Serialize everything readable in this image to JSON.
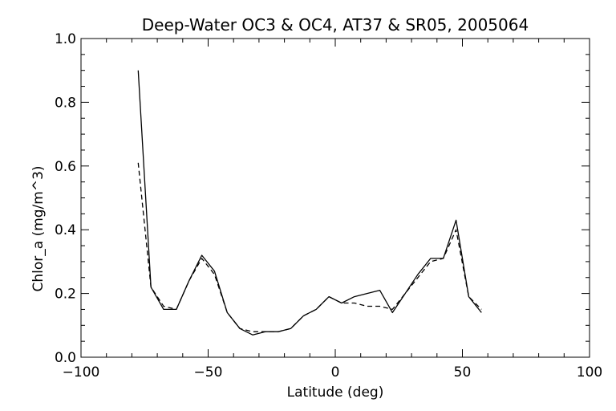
{
  "chart_data": {
    "type": "line",
    "title": "Deep-Water OC3 & OC4, AT37 & SR05, 2005064",
    "xlabel": "Latitude (deg)",
    "ylabel": "Chlor_a (mg/m^3)",
    "xlim": [
      -100,
      100
    ],
    "ylim": [
      0.0,
      1.0
    ],
    "x_ticks": [
      -100,
      -50,
      0,
      50,
      100
    ],
    "x_tick_labels": [
      "−100",
      "−50",
      "0",
      "50",
      "100"
    ],
    "y_ticks": [
      0.0,
      0.2,
      0.4,
      0.6,
      0.8,
      1.0
    ],
    "y_tick_labels": [
      "0.0",
      "0.2",
      "0.4",
      "0.6",
      "0.8",
      "1.0"
    ],
    "grid": false,
    "series": [
      {
        "style": "solid",
        "x": [
          -77.5,
          -72.5,
          -67.5,
          -62.5,
          -57.5,
          -52.5,
          -47.5,
          -42.5,
          -37.5,
          -32.5,
          -27.5,
          -22.5,
          -17.5,
          -12.5,
          -7.5,
          -2.5,
          2.5,
          7.5,
          12.5,
          17.5,
          22.5,
          27.5,
          32.5,
          37.5,
          42.5,
          47.5,
          52.5,
          57.5
        ],
        "values": [
          0.9,
          0.22,
          0.15,
          0.15,
          0.24,
          0.32,
          0.27,
          0.14,
          0.09,
          0.07,
          0.08,
          0.08,
          0.09,
          0.13,
          0.15,
          0.19,
          0.17,
          0.19,
          0.2,
          0.21,
          0.14,
          0.2,
          0.26,
          0.31,
          0.31,
          0.43,
          0.19,
          0.14
        ]
      },
      {
        "style": "dashed",
        "x": [
          -77.5,
          -72.5,
          -67.5,
          -62.5,
          -57.5,
          -52.5,
          -47.5,
          -42.5,
          -37.5,
          -32.5,
          -27.5,
          -22.5,
          -17.5,
          -12.5,
          -7.5,
          -2.5,
          2.5,
          7.5,
          12.5,
          17.5,
          22.5,
          27.5,
          32.5,
          37.5,
          42.5,
          47.5,
          52.5,
          57.5
        ],
        "values": [
          0.61,
          0.22,
          0.16,
          0.15,
          0.24,
          0.31,
          0.26,
          0.14,
          0.09,
          0.08,
          0.08,
          0.08,
          0.09,
          0.13,
          0.15,
          0.19,
          0.17,
          0.17,
          0.16,
          0.16,
          0.15,
          0.2,
          0.25,
          0.3,
          0.31,
          0.4,
          0.19,
          0.15
        ]
      }
    ]
  }
}
